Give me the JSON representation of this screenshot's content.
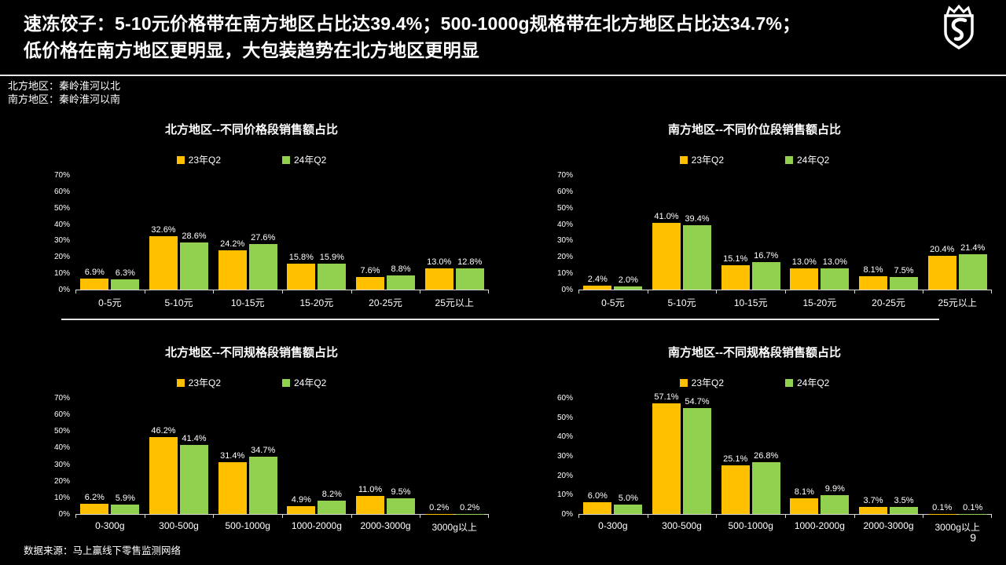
{
  "header": {
    "title_line1": "速冻饺子：5-10元价格带在南方地区占比达39.4%；500-1000g规格带在北方地区占比达34.7%；",
    "title_line2": "低价格在南方地区更明显，大包装趋势在北方地区更明显",
    "logo_icon": "crown-shield-logo"
  },
  "notes": {
    "line1": "北方地区：秦岭淮河以北",
    "line2": "南方地区：秦岭淮河以南"
  },
  "colors": {
    "series1": "#FFC000",
    "series2": "#92D050",
    "axis": "#D9D9D9",
    "background": "#000000",
    "text": "#FFFFFF"
  },
  "footer": {
    "source": "数据来源：马上赢线下零售监测网络",
    "page_number": "9"
  },
  "chart_data": [
    {
      "type": "bar",
      "title": "北方地区--不同价格段销售额占比",
      "categories": [
        "0-5元",
        "5-10元",
        "10-15元",
        "15-20元",
        "20-25元",
        "25元以上"
      ],
      "series": [
        {
          "name": "23年Q2",
          "values": [
            6.9,
            32.6,
            24.2,
            15.8,
            7.6,
            13.0
          ]
        },
        {
          "name": "24年Q2",
          "values": [
            6.3,
            28.6,
            27.6,
            15.9,
            8.8,
            12.8
          ]
        }
      ],
      "ylabel": "",
      "xlabel": "",
      "ylim": [
        0,
        70
      ],
      "ytick_step": 10,
      "unit": "%",
      "grid": false,
      "legend_position": "top"
    },
    {
      "type": "bar",
      "title": "南方地区--不同价位段销售额占比",
      "categories": [
        "0-5元",
        "5-10元",
        "10-15元",
        "15-20元",
        "20-25元",
        "25元以上"
      ],
      "series": [
        {
          "name": "23年Q2",
          "values": [
            2.4,
            41.0,
            15.1,
            13.0,
            8.1,
            20.4
          ]
        },
        {
          "name": "24年Q2",
          "values": [
            2.0,
            39.4,
            16.7,
            13.0,
            7.5,
            21.4
          ]
        }
      ],
      "ylabel": "",
      "xlabel": "",
      "ylim": [
        0,
        70
      ],
      "ytick_step": 10,
      "unit": "%",
      "grid": false,
      "legend_position": "top"
    },
    {
      "type": "bar",
      "title": "北方地区--不同规格段销售额占比",
      "categories": [
        "0-300g",
        "300-500g",
        "500-1000g",
        "1000-2000g",
        "2000-3000g",
        "3000g以上"
      ],
      "series": [
        {
          "name": "23年Q2",
          "values": [
            6.2,
            46.2,
            31.4,
            4.9,
            11.0,
            0.2
          ]
        },
        {
          "name": "24年Q2",
          "values": [
            5.9,
            41.4,
            34.7,
            8.2,
            9.5,
            0.2
          ]
        }
      ],
      "ylabel": "",
      "xlabel": "",
      "ylim": [
        0,
        70
      ],
      "ytick_step": 10,
      "unit": "%",
      "grid": false,
      "legend_position": "top"
    },
    {
      "type": "bar",
      "title": "南方地区--不同规格段销售额占比",
      "categories": [
        "0-300g",
        "300-500g",
        "500-1000g",
        "1000-2000g",
        "2000-3000g",
        "3000g以上"
      ],
      "series": [
        {
          "name": "23年Q2",
          "values": [
            6.0,
            57.1,
            25.1,
            8.1,
            3.7,
            0.1
          ]
        },
        {
          "name": "24年Q2",
          "values": [
            5.0,
            54.7,
            26.8,
            9.9,
            3.5,
            0.1
          ]
        }
      ],
      "ylabel": "",
      "xlabel": "",
      "ylim": [
        0,
        60
      ],
      "ytick_step": 10,
      "unit": "%",
      "grid": false,
      "legend_position": "top"
    }
  ]
}
